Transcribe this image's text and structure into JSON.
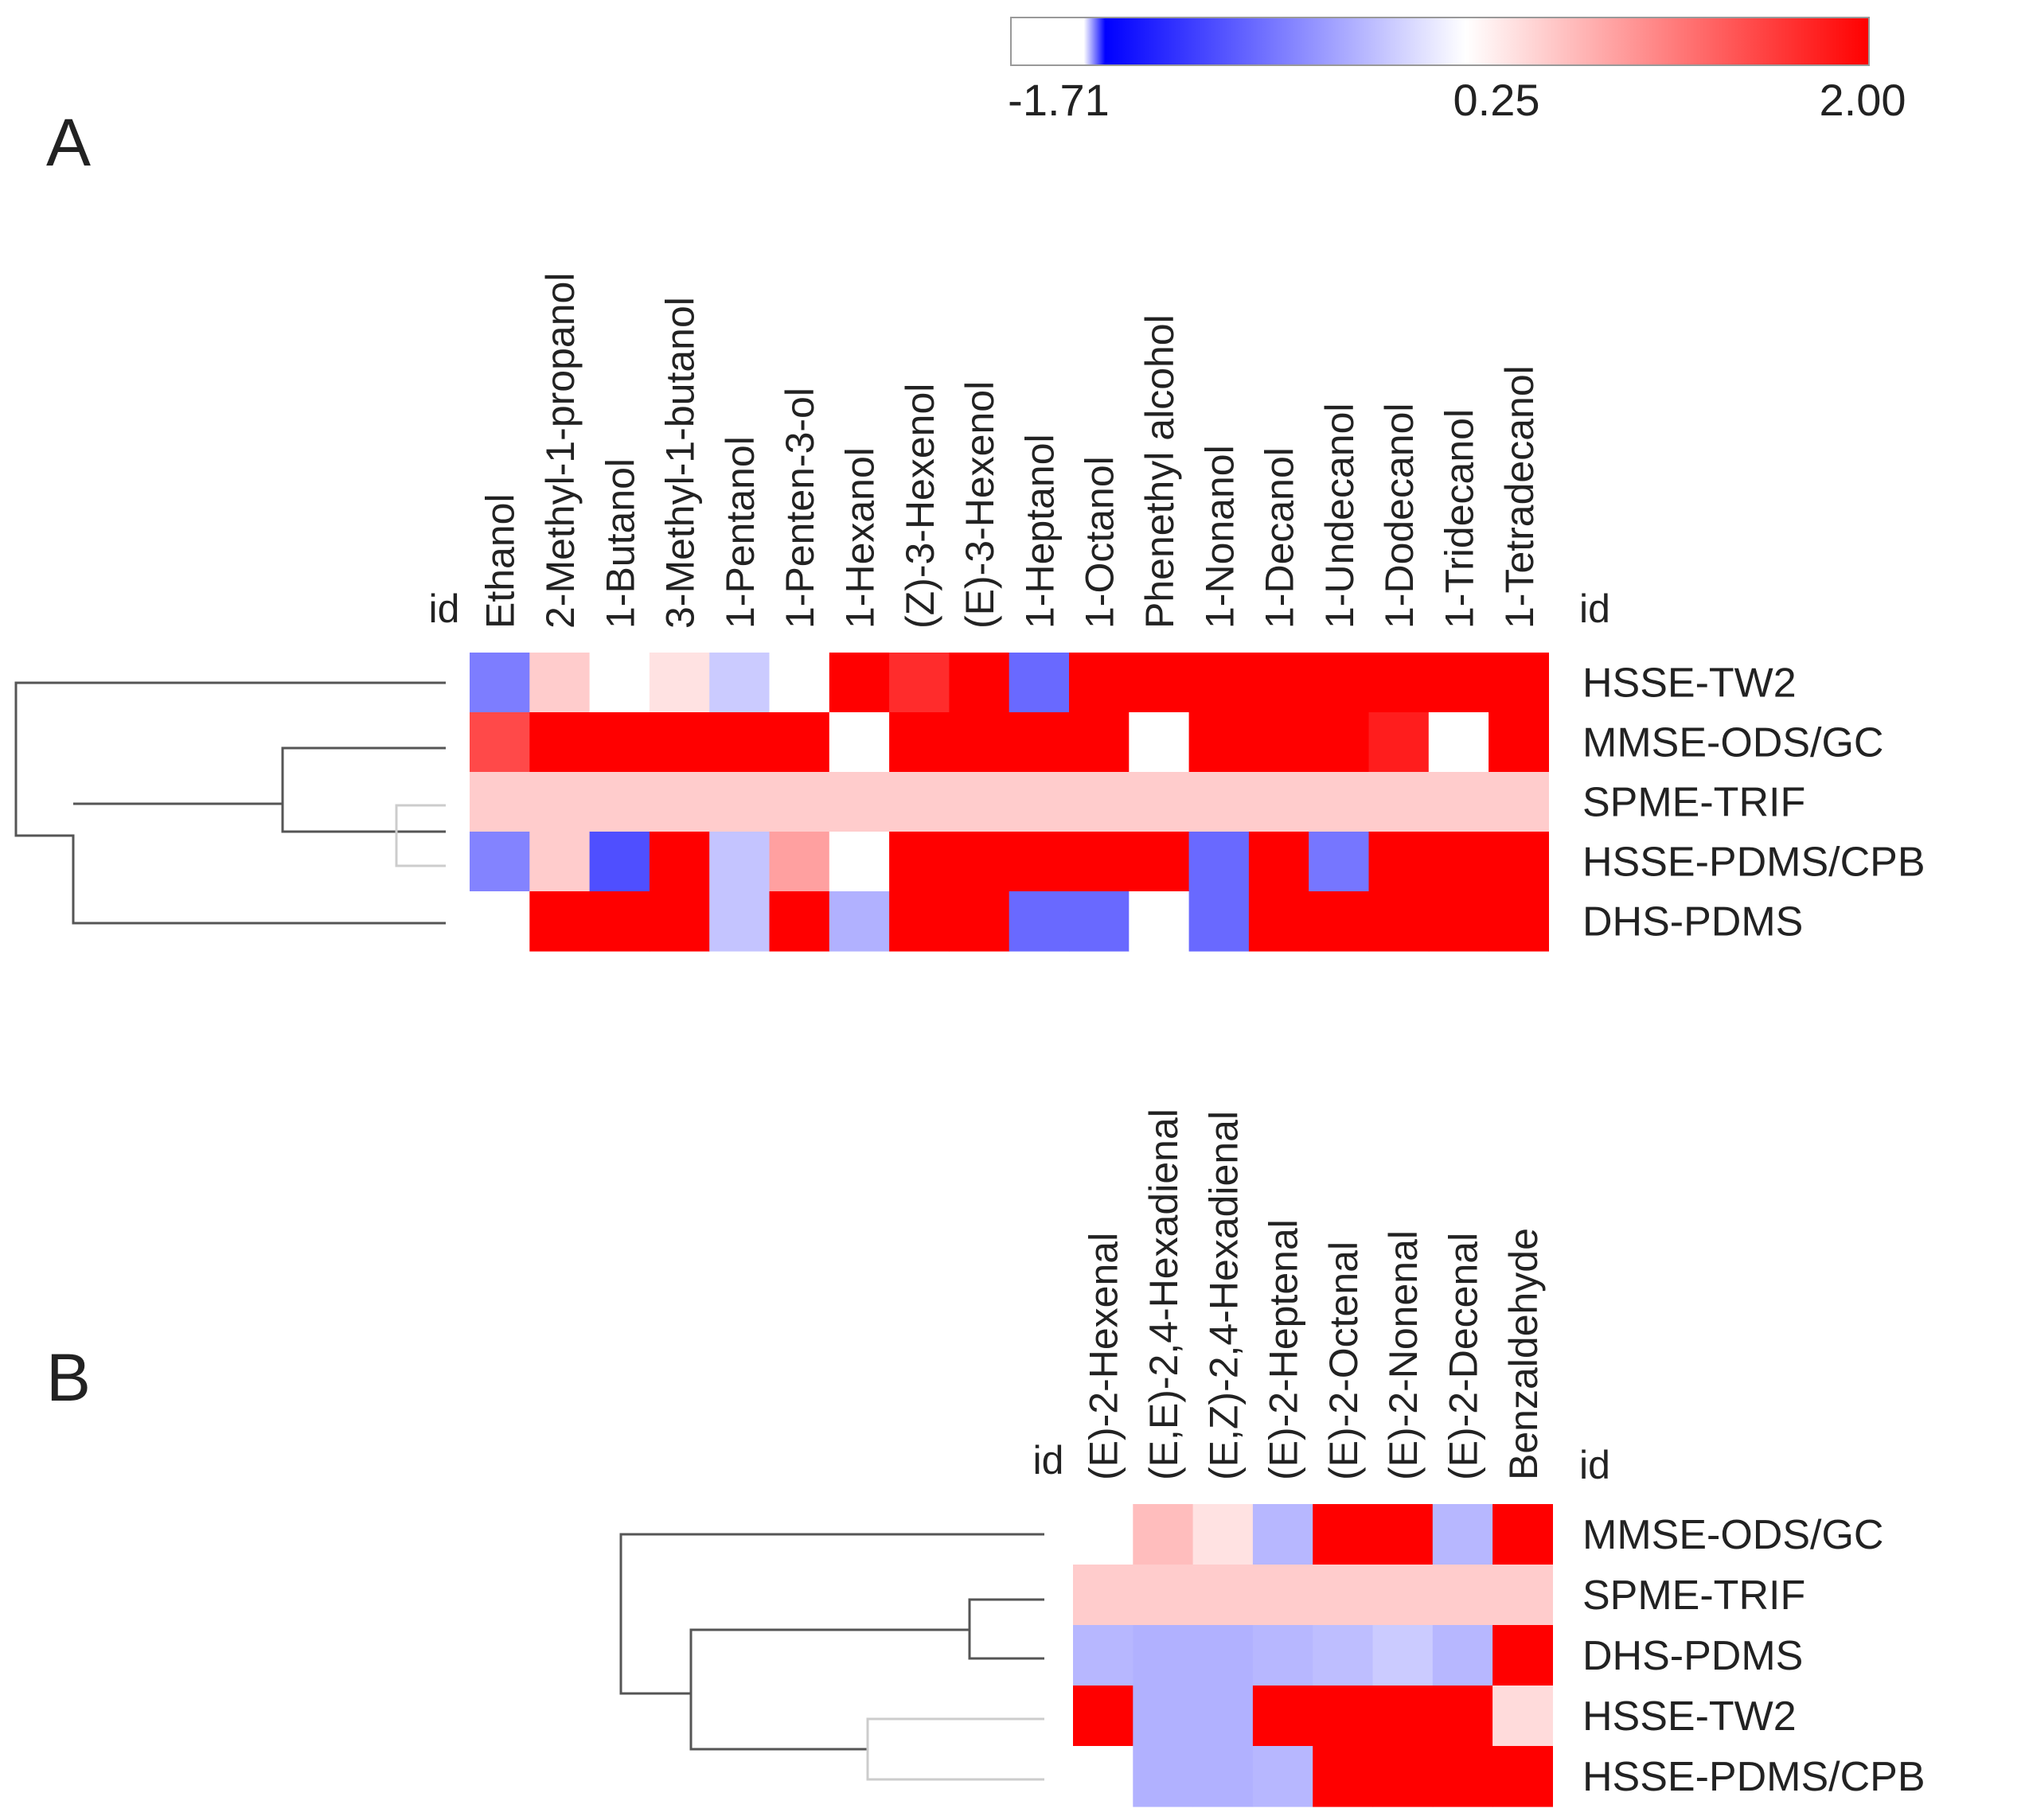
{
  "colorbar": {
    "min_label": "-1.71",
    "mid_label": "0.25",
    "max_label": "2.00",
    "min": -1.71,
    "mid": 0.25,
    "max": 2.0,
    "colors": {
      "low": "#0000ff",
      "mid": "#ffffff",
      "high": "#ff0000",
      "missing": "#ffffff"
    }
  },
  "chart_data": [
    {
      "type": "heatmap",
      "panel_label": "A",
      "row_id_label": "id",
      "col_id_label": "id",
      "columns": [
        "Ethanol",
        "2-Methyl-1-propanol",
        "1-Butanol",
        "3-Methyl-1-butanol",
        "1-Pentanol",
        "1-Penten-3-ol",
        "1-Hexanol",
        "(Z)-3-Hexenol",
        "(E)-3-Hexenol",
        "1-Heptanol",
        "1-Octanol",
        "Phenethyl alcohol",
        "1-Nonanol",
        "1-Decanol",
        "1-Undecanol",
        "1-Dodecanol",
        "1-Tridecanol",
        "1-Tetradecanol"
      ],
      "rows": [
        "HSSE-TW2",
        "MMSE-ODS/GC",
        "SPME-TRIF",
        "HSSE-PDMS/CPB",
        "DHS-PDMS"
      ],
      "values": [
        [
          -0.75,
          0.6,
          null,
          0.45,
          -0.15,
          null,
          2.0,
          1.7,
          2.0,
          -0.9,
          2.0,
          2.0,
          2.0,
          2.0,
          2.0,
          2.0,
          2.0,
          2.0
        ],
        [
          1.5,
          2.0,
          2.0,
          2.0,
          2.0,
          2.0,
          null,
          2.0,
          2.0,
          2.0,
          2.0,
          null,
          2.0,
          2.0,
          2.0,
          1.8,
          null,
          2.0
        ],
        [
          0.6,
          0.6,
          0.6,
          0.6,
          0.6,
          0.6,
          0.6,
          0.6,
          0.6,
          0.6,
          0.6,
          0.6,
          0.6,
          0.6,
          0.6,
          0.6,
          0.6,
          0.6
        ],
        [
          -0.7,
          0.6,
          -1.1,
          2.0,
          -0.2,
          0.9,
          null,
          2.0,
          2.0,
          2.0,
          2.0,
          2.0,
          -0.9,
          2.0,
          -0.8,
          2.0,
          2.0,
          2.0
        ],
        [
          null,
          2.0,
          2.0,
          2.0,
          -0.2,
          2.0,
          -0.35,
          2.0,
          2.0,
          -0.9,
          -0.9,
          null,
          -0.9,
          2.0,
          2.0,
          2.0,
          2.0,
          2.0
        ]
      ]
    },
    {
      "type": "heatmap",
      "panel_label": "B",
      "row_id_label": "id",
      "col_id_label": "id",
      "columns": [
        "(E)-2-Hexenal",
        "(E,E)-2,4-Hexadienal",
        "(E,Z)-2,4-Hexadienal",
        "(E)-2-Heptenal",
        "(E)-2-Octenal",
        "(E)-2-Nonenal",
        "(E)-2-Decenal",
        "Benzaldehyde"
      ],
      "rows": [
        "MMSE-ODS/GC",
        "SPME-TRIF",
        "DHS-PDMS",
        "HSSE-TW2",
        "HSSE-PDMS/CPB"
      ],
      "values": [
        [
          null,
          0.7,
          0.45,
          -0.3,
          2.0,
          2.0,
          -0.3,
          2.0
        ],
        [
          0.6,
          0.6,
          0.6,
          0.6,
          0.6,
          0.6,
          0.6,
          0.6
        ],
        [
          -0.3,
          -0.35,
          -0.35,
          -0.3,
          -0.25,
          -0.15,
          -0.3,
          2.0
        ],
        [
          2.0,
          -0.35,
          -0.35,
          2.0,
          2.0,
          2.0,
          2.0,
          0.5
        ],
        [
          null,
          -0.35,
          -0.35,
          -0.3,
          2.0,
          2.0,
          2.0,
          2.0
        ]
      ]
    }
  ]
}
